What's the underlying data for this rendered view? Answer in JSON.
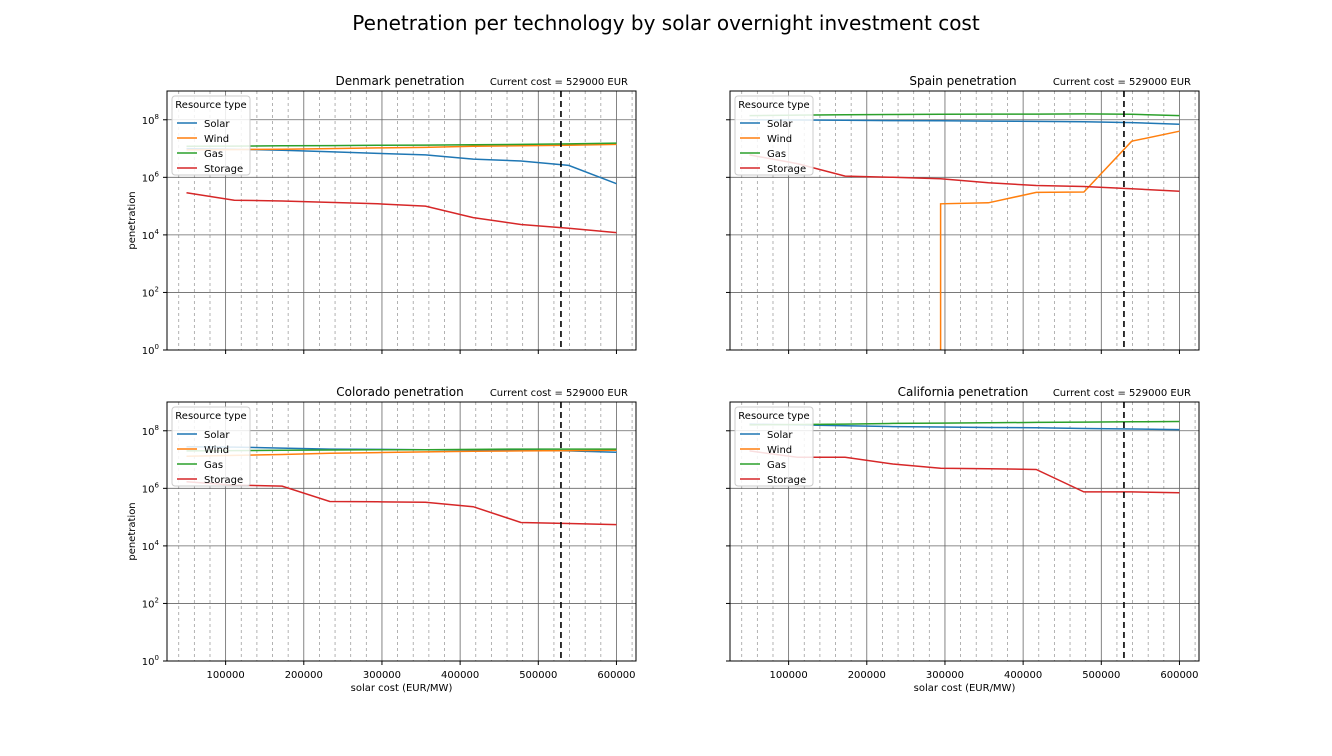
{
  "figure": {
    "suptitle": "Penetration per technology by solar overnight investment cost"
  },
  "colors": {
    "Solar": "#1f77b4",
    "Wind": "#ff7f0e",
    "Gas": "#2ca02c",
    "Storage": "#d62728"
  },
  "chart_data": [
    {
      "type": "line",
      "title": "Denmark penetration",
      "annotation": "Current cost = 529000 EUR",
      "xlabel": "",
      "ylabel": "penetration",
      "yscale": "log",
      "xlim": [
        25000,
        625000
      ],
      "ylim": [
        1,
        1000000000
      ],
      "xticks": [
        100000,
        200000,
        300000,
        400000,
        500000,
        600000
      ],
      "xticklabels": [
        "",
        "",
        "",
        "",
        "",
        ""
      ],
      "yticklabels": [
        "10^8",
        "10^6",
        "10^4",
        "10^2",
        "10^0"
      ],
      "reference_x": 529000,
      "legend_title": "Resource type",
      "legend_loc": "upper-left",
      "grid": true,
      "x": [
        50000,
        111111,
        172222,
        233333,
        294444,
        355556,
        416667,
        477778,
        538889,
        600000
      ],
      "series": [
        {
          "name": "Solar",
          "values": [
            10000000,
            9500000,
            8800000,
            7800000,
            6800000,
            6000000,
            4300000,
            3700000,
            2600000,
            600000
          ]
        },
        {
          "name": "Wind",
          "values": [
            9000000,
            9200000,
            9500000,
            10000000,
            10500000,
            11000000,
            12000000,
            12500000,
            13000000,
            14000000
          ]
        },
        {
          "name": "Gas",
          "values": [
            12000000,
            12200000,
            12500000,
            12700000,
            13000000,
            13200000,
            13500000,
            14000000,
            14500000,
            15500000
          ]
        },
        {
          "name": "Storage",
          "values": [
            290000,
            160000,
            150000,
            135000,
            120000,
            100000,
            40000,
            23000,
            17000,
            12000
          ]
        }
      ]
    },
    {
      "type": "line",
      "title": "Spain penetration",
      "annotation": "Current cost = 529000 EUR",
      "xlabel": "",
      "ylabel": "",
      "yscale": "log",
      "xlim": [
        25000,
        625000
      ],
      "ylim": [
        1,
        1000000000
      ],
      "xticks": [
        100000,
        200000,
        300000,
        400000,
        500000,
        600000
      ],
      "xticklabels": [
        "",
        "",
        "",
        "",
        "",
        ""
      ],
      "yticklabels": [
        "",
        "",
        "",
        "",
        ""
      ],
      "reference_x": 529000,
      "legend_title": "Resource type",
      "legend_loc": "upper-left",
      "grid": true,
      "x": [
        50000,
        111111,
        172222,
        233333,
        294444,
        355556,
        416667,
        477778,
        538889,
        600000
      ],
      "series": [
        {
          "name": "Solar",
          "values": [
            100000000,
            98000000,
            96000000,
            94000000,
            92000000,
            90000000,
            88000000,
            86000000,
            80000000,
            70000000
          ]
        },
        {
          "name": "Wind",
          "values": [
            null,
            null,
            null,
            null,
            120000,
            130000,
            300000,
            310000,
            18000000,
            40000000
          ]
        },
        {
          "name": "Gas",
          "values": [
            140000000,
            145000000,
            150000000,
            152000000,
            155000000,
            157000000,
            158000000,
            160000000,
            155000000,
            140000000
          ]
        },
        {
          "name": "Storage",
          "values": [
            6000000,
            3000000,
            1100000,
            1000000,
            900000,
            650000,
            520000,
            480000,
            400000,
            330000
          ]
        }
      ]
    },
    {
      "type": "line",
      "title": "Colorado penetration",
      "annotation": "Current cost = 529000 EUR",
      "xlabel": "solar cost (EUR/MW)",
      "ylabel": "penetration",
      "yscale": "log",
      "xlim": [
        25000,
        625000
      ],
      "ylim": [
        1,
        1000000000
      ],
      "xticks": [
        100000,
        200000,
        300000,
        400000,
        500000,
        600000
      ],
      "xticklabels": [
        "100000",
        "200000",
        "300000",
        "400000",
        "500000",
        "600000"
      ],
      "yticklabels": [
        "10^8",
        "10^6",
        "10^4",
        "10^2",
        "10^0"
      ],
      "reference_x": 529000,
      "legend_title": "Resource type",
      "legend_loc": "upper-left",
      "grid": true,
      "x": [
        50000,
        111111,
        172222,
        233333,
        294444,
        355556,
        416667,
        477778,
        538889,
        600000
      ],
      "series": [
        {
          "name": "Solar",
          "values": [
            28000000,
            27000000,
            25000000,
            23000000,
            22500000,
            22000000,
            21500000,
            21000000,
            20000000,
            18000000
          ]
        },
        {
          "name": "Wind",
          "values": [
            13000000,
            14000000,
            15000000,
            16500000,
            17500000,
            18500000,
            19500000,
            20000000,
            20500000,
            21000000
          ]
        },
        {
          "name": "Gas",
          "values": [
            20000000,
            20500000,
            21000000,
            21500000,
            22000000,
            22000000,
            22500000,
            23000000,
            23000000,
            23000000
          ]
        },
        {
          "name": "Storage",
          "values": [
            1700000,
            1300000,
            1200000,
            350000,
            340000,
            330000,
            230000,
            65000,
            60000,
            55000
          ]
        }
      ]
    },
    {
      "type": "line",
      "title": "California penetration",
      "annotation": "Current cost = 529000 EUR",
      "xlabel": "solar cost (EUR/MW)",
      "ylabel": "",
      "yscale": "log",
      "xlim": [
        25000,
        625000
      ],
      "ylim": [
        1,
        1000000000
      ],
      "xticks": [
        100000,
        200000,
        300000,
        400000,
        500000,
        600000
      ],
      "xticklabels": [
        "100000",
        "200000",
        "300000",
        "400000",
        "500000",
        "600000"
      ],
      "yticklabels": [
        "",
        "",
        "",
        "",
        ""
      ],
      "reference_x": 529000,
      "legend_title": "Resource type",
      "legend_loc": "upper-left",
      "grid": true,
      "x": [
        50000,
        111111,
        172222,
        233333,
        294444,
        355556,
        416667,
        477778,
        538889,
        600000
      ],
      "series": [
        {
          "name": "Solar",
          "values": [
            170000000,
            160000000,
            150000000,
            140000000,
            135000000,
            130000000,
            128000000,
            120000000,
            115000000,
            110000000
          ]
        },
        {
          "name": "Wind",
          "values": [
            null,
            null,
            null,
            null,
            null,
            null,
            null,
            null,
            null,
            null
          ]
        },
        {
          "name": "Gas",
          "values": [
            160000000,
            165000000,
            170000000,
            180000000,
            185000000,
            190000000,
            195000000,
            200000000,
            205000000,
            210000000
          ]
        },
        {
          "name": "Storage",
          "values": [
            20000000,
            12000000,
            12000000,
            7000000,
            5000000,
            4800000,
            4500000,
            750000,
            750000,
            700000
          ]
        }
      ]
    }
  ]
}
